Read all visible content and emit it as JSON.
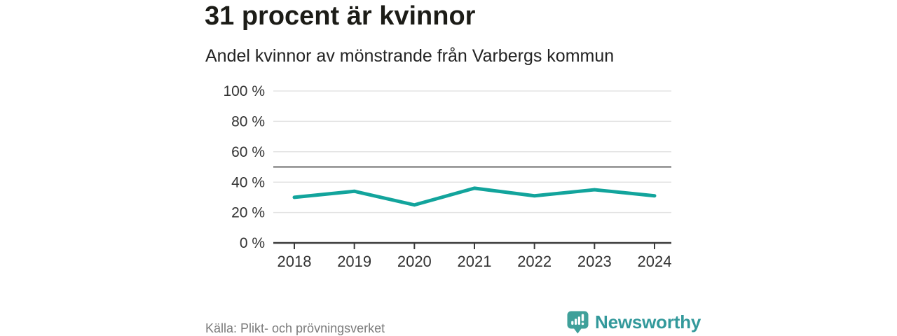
{
  "chart_data": {
    "type": "line",
    "title": "31 procent är kvinnor",
    "subtitle": "Andel kvinnor av mönstrande från Varbergs kommun",
    "source": "Källa: Plikt- och prövningsverket",
    "x": [
      "2018",
      "2019",
      "2020",
      "2021",
      "2022",
      "2023",
      "2024"
    ],
    "series": [
      {
        "name": "Andel kvinnor",
        "color": "#12a49c",
        "values": [
          30,
          34,
          25,
          36,
          31,
          35,
          31
        ]
      }
    ],
    "ylim": [
      0,
      100
    ],
    "yticks": [
      0,
      20,
      40,
      60,
      80,
      100
    ],
    "ytick_suffix": " %",
    "reference_line": {
      "value": 50,
      "color": "#6b6b6b"
    },
    "grid": true,
    "legend": "none",
    "colors": {
      "grid": "#e3e3e3",
      "axis": "#3a3a3a",
      "tick_label": "#333333"
    }
  },
  "footer": {
    "source": "Källa: Plikt- och prövningsverket",
    "brand": {
      "name": "Newsworthy",
      "color": "#33999b",
      "icon": "bar-chart-speech-bubble-icon",
      "icon_color": "#3fa09a"
    }
  }
}
